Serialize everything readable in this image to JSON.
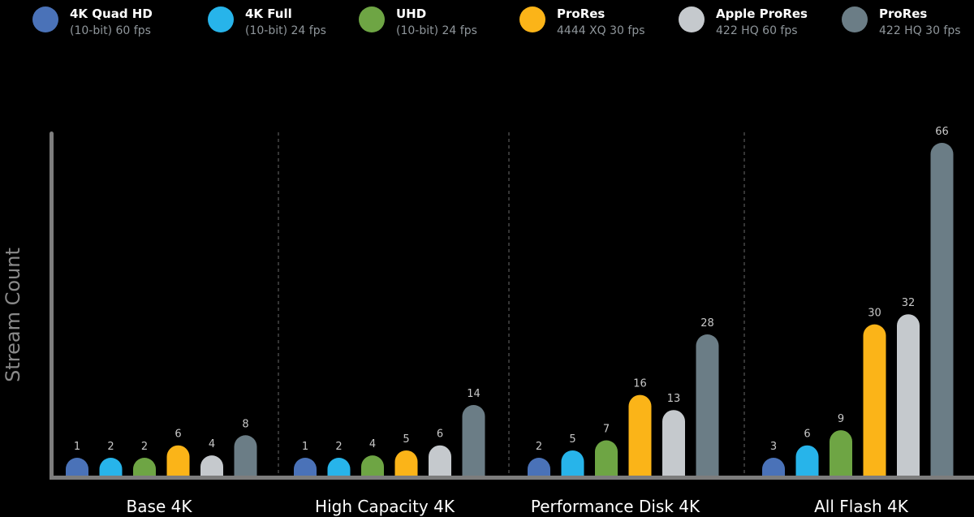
{
  "legend": [
    {
      "name": "4K Quad HD",
      "detail": "(10-bit) 60 fps",
      "color": "#4a72b8"
    },
    {
      "name": "4K Full",
      "detail": "(10-bit) 24 fps",
      "color": "#27b4ea"
    },
    {
      "name": "UHD",
      "detail": "(10-bit) 24 fps",
      "color": "#6ea544"
    },
    {
      "name": "ProRes",
      "detail": "4444 XQ 30 fps",
      "color": "#fbb418"
    },
    {
      "name": "Apple ProRes",
      "detail": "422 HQ 60 fps",
      "color": "#c5c9cd"
    },
    {
      "name": "ProRes",
      "detail": "422 HQ 30 fps",
      "color": "#6b7d86"
    }
  ],
  "chart_data": {
    "type": "bar",
    "ylabel": "Stream Count",
    "xlabel": "",
    "ylim": [
      0,
      66
    ],
    "grid": false,
    "legend_position": "top",
    "categories": [
      "Base 4K",
      "High Capacity 4K",
      "Performance Disk 4K",
      "All Flash 4K"
    ],
    "series": [
      {
        "name": "4K Quad HD (10-bit) 60 fps",
        "values": [
          1,
          1,
          2,
          3
        ]
      },
      {
        "name": "4K Full (10-bit) 24 fps",
        "values": [
          2,
          2,
          5,
          6
        ]
      },
      {
        "name": "UHD (10-bit) 24 fps",
        "values": [
          2,
          4,
          7,
          9
        ]
      },
      {
        "name": "ProRes 4444 XQ 30 fps",
        "values": [
          6,
          5,
          16,
          30
        ]
      },
      {
        "name": "Apple ProRes 422 HQ 60 fps",
        "values": [
          4,
          6,
          13,
          32
        ]
      },
      {
        "name": "ProRes 422 HQ 30 fps",
        "values": [
          8,
          14,
          28,
          66
        ]
      }
    ]
  }
}
